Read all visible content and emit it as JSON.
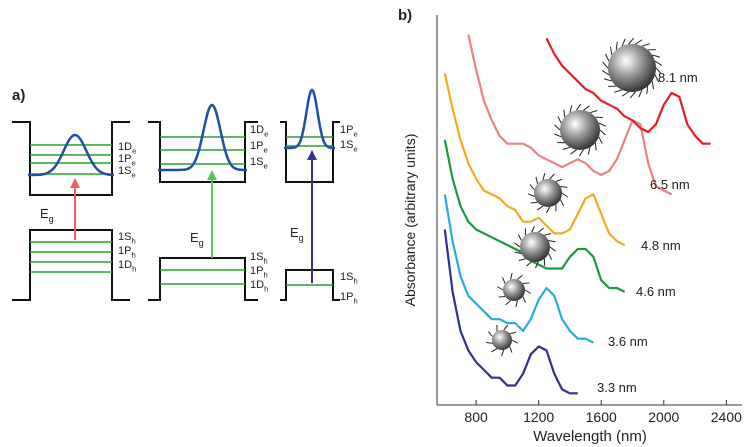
{
  "panel_a": {
    "label": "a)",
    "wells": [
      {
        "conduction_levels": [
          {
            "text": "1D",
            "sub": "e"
          },
          {
            "text": "1P",
            "sub": "e"
          },
          {
            "text": "1S",
            "sub": "e"
          }
        ],
        "valence_levels": [
          {
            "text": "1S",
            "sub": "h"
          },
          {
            "text": "1P",
            "sub": "h"
          },
          {
            "text": "1D",
            "sub": "h"
          }
        ],
        "gap": {
          "text": "E",
          "sub": "g"
        }
      },
      {
        "conduction_levels": [
          {
            "text": "1D",
            "sub": "e"
          },
          {
            "text": "1P",
            "sub": "e"
          },
          {
            "text": "1S",
            "sub": "e"
          }
        ],
        "valence_levels": [
          {
            "text": "1S",
            "sub": "h"
          },
          {
            "text": "1P",
            "sub": "h"
          },
          {
            "text": "1D",
            "sub": "h"
          }
        ],
        "gap": {
          "text": "E",
          "sub": "g"
        }
      },
      {
        "conduction_levels": [
          {
            "text": "1P",
            "sub": "e"
          },
          {
            "text": "1S",
            "sub": "e"
          }
        ],
        "valence_levels": [
          {
            "text": "1S",
            "sub": "h"
          },
          {
            "text": "1P",
            "sub": "h"
          }
        ],
        "gap": {
          "text": "E",
          "sub": "g"
        }
      }
    ]
  },
  "chart_data": {
    "type": "line",
    "panel_label": "b)",
    "x_label": "Wavelength (nm)",
    "y_label": "Absorbance (arbitrary units)",
    "xlim": [
      550,
      2500
    ],
    "xticks": [
      800,
      1200,
      1600,
      2000,
      2400
    ],
    "ylim": [
      0,
      100
    ],
    "x": [
      600,
      650,
      700,
      750,
      800,
      850,
      900,
      950,
      1000,
      1050,
      1100,
      1150,
      1200,
      1250,
      1300,
      1350,
      1400,
      1450,
      1500,
      1550,
      1600,
      1650,
      1700,
      1750,
      1800,
      1850,
      1900,
      1950,
      2000,
      2050,
      2100,
      2150,
      2200,
      2250,
      2300
    ],
    "series": [
      {
        "name": "3.3 nm",
        "color": "#2e3192",
        "values": [
          45,
          29,
          19,
          14,
          11,
          9,
          7,
          7,
          5,
          5,
          8,
          13,
          15,
          14,
          8,
          4,
          3,
          3,
          null,
          null,
          null,
          null,
          null,
          null,
          null,
          null,
          null,
          null,
          null,
          null,
          null,
          null,
          null,
          null,
          null
        ]
      },
      {
        "name": "3.6 nm",
        "color": "#29abe2",
        "values": [
          54,
          42,
          33,
          28,
          26,
          24,
          22,
          22,
          21,
          21,
          19,
          22,
          27,
          30,
          28,
          22,
          19,
          17,
          17,
          16,
          null,
          null,
          null,
          null,
          null,
          null,
          null,
          null,
          null,
          null,
          null,
          null,
          null,
          null,
          null
        ]
      },
      {
        "name": "4.6 nm",
        "color": "#1a9a3e",
        "values": [
          68,
          58,
          51,
          47,
          45,
          44,
          43,
          42,
          41,
          40,
          39,
          37,
          36,
          35,
          35,
          35,
          38,
          40,
          40,
          38,
          32,
          30,
          30,
          29,
          null,
          null,
          null,
          null,
          null,
          null,
          null,
          null,
          null,
          null,
          null
        ]
      },
      {
        "name": "4.8 nm",
        "color": "#f7a823",
        "values": [
          85,
          76,
          68,
          62,
          58,
          55,
          54,
          53,
          51,
          50,
          47,
          47,
          48,
          46,
          44,
          44,
          45,
          49,
          53,
          54,
          49,
          44,
          42,
          41,
          null,
          null,
          null,
          null,
          null,
          null,
          null,
          null,
          null,
          null,
          null
        ]
      },
      {
        "name": "6.5 nm",
        "color": "#f08080",
        "values": [
          null,
          null,
          null,
          95,
          86,
          78,
          73,
          69,
          67,
          67,
          67,
          66,
          64,
          63,
          62,
          61,
          62,
          63,
          62,
          60,
          59,
          60,
          63,
          68,
          73,
          72,
          62,
          56,
          55,
          54,
          null,
          null,
          null,
          null,
          null
        ]
      },
      {
        "name": "8.1 nm",
        "color": "#e31e24",
        "values": [
          null,
          null,
          null,
          null,
          null,
          null,
          null,
          null,
          null,
          null,
          null,
          null,
          null,
          94,
          90,
          87,
          85,
          83,
          81,
          80,
          78,
          77,
          76,
          74,
          73,
          71,
          70,
          72,
          77,
          80,
          79,
          72,
          69,
          67,
          67
        ]
      }
    ]
  }
}
